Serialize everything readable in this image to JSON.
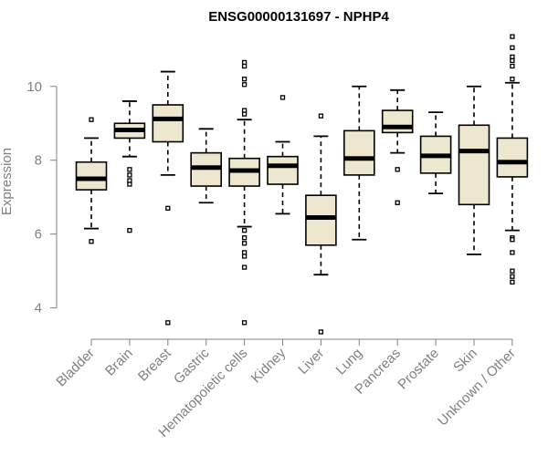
{
  "chart_data": {
    "type": "boxplot",
    "title": "ENSG00000131697 - NPHP4",
    "xlabel": "",
    "ylabel": "Expression",
    "ylim": [
      3.2,
      11.6
    ],
    "yticks": [
      4,
      6,
      8,
      10
    ],
    "box_fill": "#EDE7CF",
    "categories": [
      "Bladder",
      "Brain",
      "Breast",
      "Gastric",
      "Hematopoietic cells",
      "Kidney",
      "Liver",
      "Lung",
      "Pancreas",
      "Prostate",
      "Skin",
      "Unknown / Other"
    ],
    "boxes": [
      {
        "name": "Bladder",
        "whisker_low": 6.15,
        "q1": 7.2,
        "median": 7.5,
        "q3": 7.95,
        "whisker_high": 8.6,
        "outliers": [
          5.8,
          9.1
        ]
      },
      {
        "name": "Brain",
        "whisker_low": 8.1,
        "q1": 8.6,
        "median": 8.82,
        "q3": 9.0,
        "whisker_high": 9.6,
        "outliers": [
          7.75,
          7.6,
          7.45,
          7.35,
          6.1
        ]
      },
      {
        "name": "Breast",
        "whisker_low": 7.6,
        "q1": 8.5,
        "median": 9.12,
        "q3": 9.5,
        "whisker_high": 10.4,
        "outliers": [
          6.7,
          3.6
        ]
      },
      {
        "name": "Gastric",
        "whisker_low": 6.85,
        "q1": 7.3,
        "median": 7.8,
        "q3": 8.2,
        "whisker_high": 8.85,
        "outliers": []
      },
      {
        "name": "Hematopoietic cells",
        "whisker_low": 6.2,
        "q1": 7.3,
        "median": 7.72,
        "q3": 8.05,
        "whisker_high": 9.1,
        "outliers": [
          10.65,
          10.55,
          10.2,
          10.05,
          9.35,
          9.25,
          6.1,
          5.9,
          5.75,
          5.5,
          5.4,
          5.1,
          3.6
        ]
      },
      {
        "name": "Kidney",
        "whisker_low": 6.55,
        "q1": 7.35,
        "median": 7.85,
        "q3": 8.1,
        "whisker_high": 8.5,
        "outliers": [
          9.7
        ]
      },
      {
        "name": "Liver",
        "whisker_low": 4.9,
        "q1": 5.7,
        "median": 6.45,
        "q3": 7.05,
        "whisker_high": 8.65,
        "outliers": [
          9.2,
          3.35
        ]
      },
      {
        "name": "Lung",
        "whisker_low": 5.85,
        "q1": 7.6,
        "median": 8.05,
        "q3": 8.8,
        "whisker_high": 10.0,
        "outliers": []
      },
      {
        "name": "Pancreas",
        "whisker_low": 8.2,
        "q1": 8.75,
        "median": 8.9,
        "q3": 9.35,
        "whisker_high": 9.9,
        "outliers": [
          7.75,
          6.85
        ]
      },
      {
        "name": "Prostate",
        "whisker_low": 7.1,
        "q1": 7.65,
        "median": 8.12,
        "q3": 8.65,
        "whisker_high": 9.3,
        "outliers": []
      },
      {
        "name": "Skin",
        "whisker_low": 5.45,
        "q1": 6.8,
        "median": 8.25,
        "q3": 8.95,
        "whisker_high": 10.0,
        "outliers": []
      },
      {
        "name": "Unknown / Other",
        "whisker_low": 6.1,
        "q1": 7.55,
        "median": 7.95,
        "q3": 8.6,
        "whisker_high": 10.1,
        "outliers": [
          11.35,
          11.05,
          10.8,
          10.7,
          10.55,
          10.2,
          5.9,
          5.85,
          5.5,
          5.0,
          4.85,
          4.7
        ]
      }
    ]
  }
}
